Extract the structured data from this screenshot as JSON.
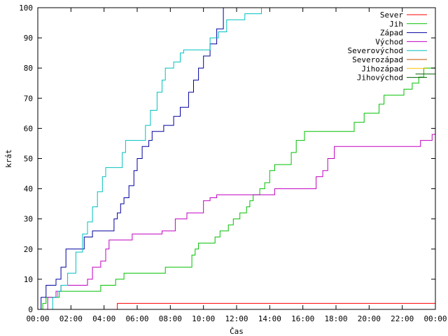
{
  "chart_data": {
    "type": "line",
    "xlabel": "Čas",
    "ylabel": "krát",
    "xlim": [
      0,
      24
    ],
    "ylim": [
      0,
      100
    ],
    "x_ticks": [
      {
        "value": 0,
        "label": "00:00"
      },
      {
        "value": 2,
        "label": "02:00"
      },
      {
        "value": 4,
        "label": "04:00"
      },
      {
        "value": 6,
        "label": "06:00"
      },
      {
        "value": 8,
        "label": "08:00"
      },
      {
        "value": 10,
        "label": "10:00"
      },
      {
        "value": 12,
        "label": "12:00"
      },
      {
        "value": 14,
        "label": "14:00"
      },
      {
        "value": 16,
        "label": "16:00"
      },
      {
        "value": 18,
        "label": "18:00"
      },
      {
        "value": 20,
        "label": "20:00"
      },
      {
        "value": 22,
        "label": "22:00"
      },
      {
        "value": 24,
        "label": "00:00"
      }
    ],
    "y_ticks": [
      0,
      10,
      20,
      30,
      40,
      50,
      60,
      70,
      80,
      90,
      100
    ],
    "grid": false,
    "legend_position": "top-right",
    "series": [
      {
        "name": "Sever",
        "color": "#ff0000",
        "points": [
          [
            0,
            0
          ],
          [
            4.8,
            0
          ],
          [
            4.8,
            2
          ],
          [
            24,
            2
          ]
        ]
      },
      {
        "name": "Jih",
        "color": "#00c000",
        "points": [
          [
            0,
            0
          ],
          [
            0.3,
            2
          ],
          [
            0.5,
            4
          ],
          [
            1.0,
            4
          ],
          [
            1.3,
            6
          ],
          [
            3.7,
            6
          ],
          [
            3.8,
            8
          ],
          [
            4.6,
            8
          ],
          [
            4.7,
            10
          ],
          [
            5.0,
            10
          ],
          [
            5.2,
            12
          ],
          [
            7.5,
            12
          ],
          [
            7.7,
            14
          ],
          [
            9.0,
            14
          ],
          [
            9.3,
            18
          ],
          [
            9.5,
            20
          ],
          [
            9.7,
            22
          ],
          [
            10.5,
            22
          ],
          [
            10.7,
            24
          ],
          [
            11.0,
            26
          ],
          [
            11.2,
            26
          ],
          [
            11.5,
            28
          ],
          [
            11.8,
            30
          ],
          [
            12.2,
            32
          ],
          [
            12.6,
            34
          ],
          [
            12.8,
            36
          ],
          [
            13.0,
            38
          ],
          [
            13.4,
            40
          ],
          [
            13.7,
            42
          ],
          [
            14.0,
            46
          ],
          [
            14.3,
            48
          ],
          [
            15.0,
            48
          ],
          [
            15.3,
            52
          ],
          [
            15.6,
            56
          ],
          [
            16.1,
            59
          ],
          [
            18.9,
            59
          ],
          [
            19.1,
            62
          ],
          [
            19.5,
            62
          ],
          [
            19.7,
            65
          ],
          [
            20.3,
            65
          ],
          [
            20.6,
            68
          ],
          [
            20.9,
            71
          ],
          [
            21.8,
            71
          ],
          [
            22.1,
            73
          ],
          [
            22.6,
            75
          ],
          [
            23.0,
            77
          ],
          [
            23.3,
            80
          ],
          [
            24,
            80
          ]
        ]
      },
      {
        "name": "Západ",
        "color": "#0000a0",
        "points": [
          [
            0,
            0
          ],
          [
            0.2,
            4
          ],
          [
            0.5,
            8
          ],
          [
            0.9,
            8
          ],
          [
            1.1,
            10
          ],
          [
            1.4,
            14
          ],
          [
            1.7,
            20
          ],
          [
            2.5,
            20
          ],
          [
            2.8,
            24
          ],
          [
            3.0,
            24
          ],
          [
            3.3,
            26
          ],
          [
            4.4,
            26
          ],
          [
            4.6,
            30
          ],
          [
            4.8,
            32
          ],
          [
            5.0,
            35
          ],
          [
            5.2,
            37
          ],
          [
            5.5,
            41
          ],
          [
            5.8,
            46
          ],
          [
            6.0,
            50
          ],
          [
            6.3,
            54
          ],
          [
            6.7,
            56
          ],
          [
            6.9,
            59
          ],
          [
            7.5,
            59
          ],
          [
            7.6,
            61
          ],
          [
            7.9,
            61
          ],
          [
            8.2,
            64
          ],
          [
            8.6,
            67
          ],
          [
            8.9,
            67
          ],
          [
            9.1,
            72
          ],
          [
            9.4,
            76
          ],
          [
            9.7,
            80
          ],
          [
            10.0,
            84
          ],
          [
            10.4,
            88
          ],
          [
            10.8,
            93
          ],
          [
            11.2,
            100
          ]
        ]
      },
      {
        "name": "Východ",
        "color": "#c000c0",
        "points": [
          [
            0,
            0
          ],
          [
            0.6,
            4
          ],
          [
            1.1,
            6
          ],
          [
            1.4,
            8
          ],
          [
            2.7,
            8
          ],
          [
            3.0,
            10
          ],
          [
            3.3,
            14
          ],
          [
            3.8,
            16
          ],
          [
            4.1,
            20
          ],
          [
            4.3,
            23
          ],
          [
            5.5,
            23
          ],
          [
            5.7,
            25
          ],
          [
            7.3,
            25
          ],
          [
            7.5,
            26
          ],
          [
            8.1,
            26
          ],
          [
            8.3,
            30
          ],
          [
            8.9,
            30
          ],
          [
            9.0,
            32
          ],
          [
            9.8,
            32
          ],
          [
            10.0,
            36
          ],
          [
            10.4,
            37
          ],
          [
            10.8,
            38
          ],
          [
            14.1,
            38
          ],
          [
            14.3,
            40
          ],
          [
            16.5,
            40
          ],
          [
            16.8,
            44
          ],
          [
            17.2,
            46
          ],
          [
            17.5,
            50
          ],
          [
            17.9,
            54
          ],
          [
            22.9,
            54
          ],
          [
            23.1,
            56
          ],
          [
            23.8,
            58
          ],
          [
            24,
            58
          ]
        ]
      },
      {
        "name": "Severovýchod",
        "color": "#00c0c0",
        "points": [
          [
            0,
            0
          ],
          [
            0.7,
            0
          ],
          [
            0.9,
            4
          ],
          [
            1.2,
            6
          ],
          [
            1.4,
            8
          ],
          [
            1.8,
            12
          ],
          [
            2.3,
            19
          ],
          [
            2.7,
            25
          ],
          [
            3.0,
            29
          ],
          [
            3.3,
            34
          ],
          [
            3.6,
            39
          ],
          [
            3.9,
            44
          ],
          [
            4.1,
            47
          ],
          [
            4.8,
            47
          ],
          [
            5.1,
            52
          ],
          [
            5.3,
            56
          ],
          [
            6.2,
            56
          ],
          [
            6.5,
            61
          ],
          [
            6.8,
            66
          ],
          [
            7.2,
            72
          ],
          [
            7.5,
            76
          ],
          [
            7.7,
            80
          ],
          [
            8.2,
            82
          ],
          [
            8.6,
            85
          ],
          [
            8.8,
            86
          ],
          [
            10.1,
            86
          ],
          [
            10.4,
            90
          ],
          [
            10.9,
            92
          ],
          [
            11.4,
            96
          ],
          [
            12.2,
            96
          ],
          [
            12.5,
            98
          ],
          [
            13.3,
            98
          ],
          [
            13.5,
            100
          ]
        ]
      },
      {
        "name": "Severozápad",
        "color": "#c05000",
        "points": []
      },
      {
        "name": "Jihozápad",
        "color": "#ffc000",
        "points": []
      },
      {
        "name": "Jihovýchod",
        "color": "#006000",
        "points": [
          [
            22.8,
            78
          ],
          [
            24,
            78
          ]
        ]
      }
    ]
  }
}
